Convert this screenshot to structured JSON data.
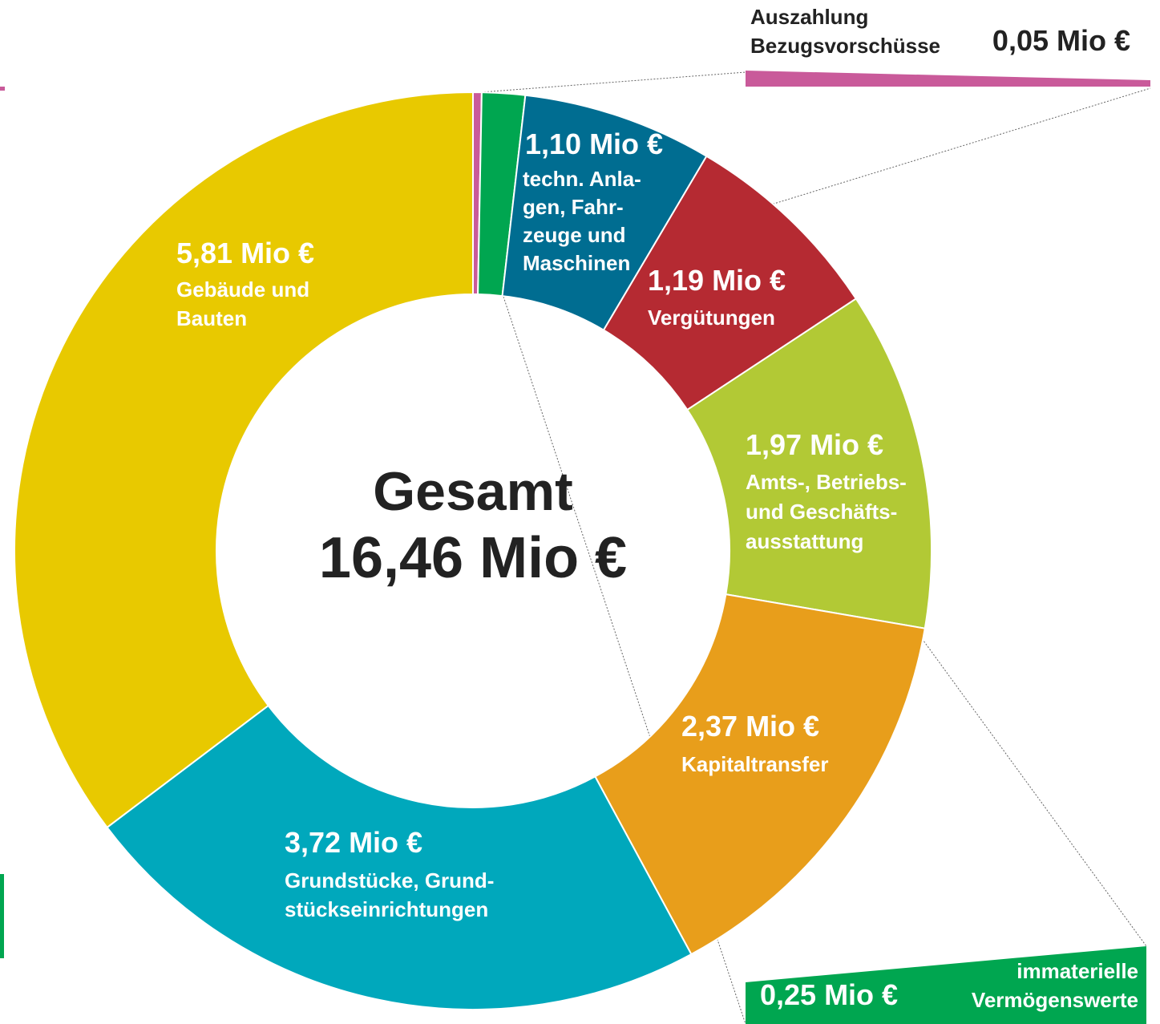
{
  "chart_data": {
    "type": "donut",
    "center_label": "Gesamt",
    "total": 16.46,
    "total_label": "16,46 Mio €",
    "categories": [
      "Auszahlung\nBezugsvorschüsse",
      "immaterielle\nVermögenswerte",
      "techn. Anla-\ngen, Fahr-\nzeuge und\nMaschinen",
      "Vergütungen",
      "Amts-, Betriebs-\nund Geschäfts-\nausstattung",
      "Kapitaltransfer",
      "Grundstücke, Grund-\nstückseinrichtungen",
      "Gebäude und\nBauten"
    ],
    "values": [
      0.05,
      0.25,
      1.1,
      1.19,
      1.97,
      2.37,
      3.72,
      5.81
    ],
    "value_labels": [
      "0,05 Mio €",
      "0,25 Mio €",
      "1,10 Mio €",
      "1,19 Mio €",
      "1,97 Mio €",
      "2,37 Mio €",
      "3,72 Mio €",
      "5,81 Mio €"
    ],
    "colors": [
      "#c95a9a",
      "#00a650",
      "#006d91",
      "#b52a32",
      "#b2c935",
      "#e89e1b",
      "#00a8bc",
      "#e8c900"
    ]
  }
}
